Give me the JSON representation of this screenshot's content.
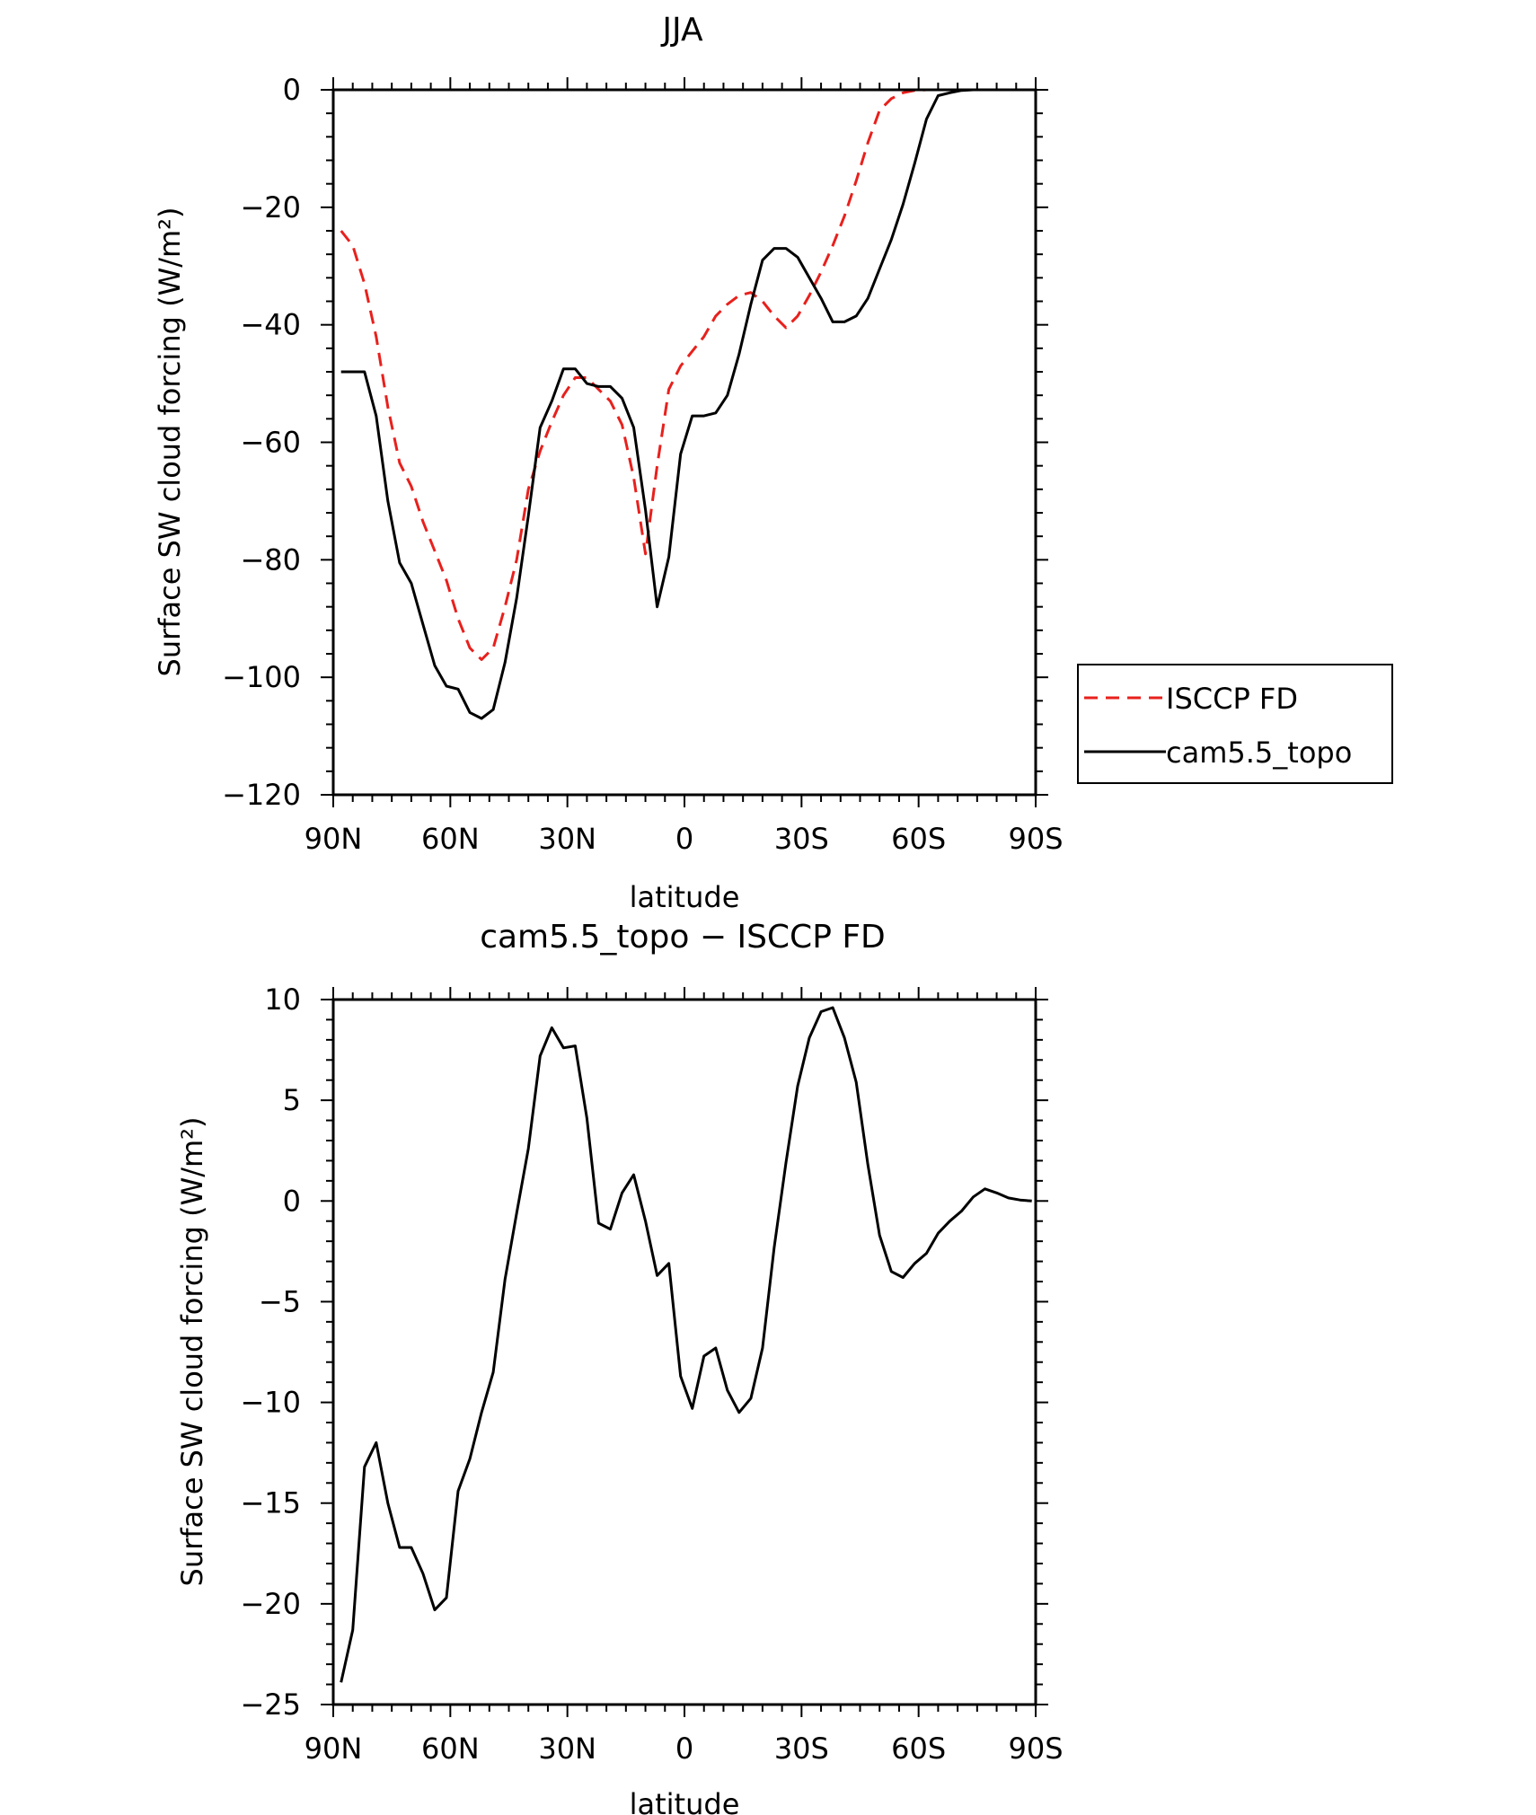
{
  "chart_data": [
    {
      "type": "line",
      "title": "JJA",
      "xlabel": "latitude",
      "ylabel": "Surface SW cloud forcing (W/m²)",
      "xlim": [
        90,
        -90
      ],
      "ylim": [
        -120,
        0
      ],
      "xticks": [
        90,
        60,
        30,
        0,
        -30,
        -60,
        -90
      ],
      "xtick_labels": [
        "90N",
        "60N",
        "30N",
        "0",
        "30S",
        "60S",
        "90S"
      ],
      "yticks": [
        0,
        -20,
        -40,
        -60,
        -80,
        -100,
        -120
      ],
      "ytick_labels": [
        "0",
        "−20",
        "−40",
        "−60",
        "−80",
        "−100",
        "−120"
      ],
      "legend": "right",
      "x": [
        88,
        85,
        82,
        79,
        76,
        73,
        70,
        67,
        64,
        61,
        58,
        55,
        52,
        49,
        46,
        43,
        40,
        37,
        34,
        31,
        28,
        25,
        22,
        19,
        16,
        13,
        10,
        7,
        4,
        1,
        -2,
        -5,
        -8,
        -11,
        -14,
        -17,
        -20,
        -23,
        -26,
        -29,
        -32,
        -35,
        -38,
        -41,
        -44,
        -47,
        -50,
        -53,
        -56,
        -59,
        -62,
        -65,
        -68,
        -71,
        -74,
        -77,
        -80,
        -83,
        -86,
        -89
      ],
      "series": [
        {
          "name": "ISCCP FD",
          "color": "#e8201c",
          "dash": true,
          "values": [
            -24,
            -26.5,
            -33,
            -42,
            -54,
            -63.5,
            -67.5,
            -73.5,
            -78.5,
            -83.5,
            -90,
            -95,
            -97,
            -95,
            -88,
            -80,
            -68,
            -61.5,
            -56.5,
            -52,
            -49,
            -49,
            -51,
            -53,
            -57,
            -66,
            -79,
            -64,
            -51,
            -47,
            -44.5,
            -42,
            -38.5,
            -36.5,
            -35,
            -34.5,
            -36,
            -38.5,
            -40.5,
            -38.5,
            -35,
            -31,
            -26.5,
            -21.5,
            -15.5,
            -9,
            -3.5,
            -1.5,
            -0.5,
            -0.1,
            0,
            0,
            0,
            0,
            0,
            0,
            0,
            0,
            0,
            0
          ]
        },
        {
          "name": "cam5.5_topo",
          "color": "#000000",
          "dash": false,
          "values": [
            -48,
            -48,
            -48,
            -55.5,
            -70,
            -80.5,
            -84,
            -91,
            -98,
            -101.5,
            -102,
            -106,
            -107,
            -105.5,
            -97.5,
            -86.5,
            -72.5,
            -57.5,
            -53,
            -47.5,
            -47.5,
            -50,
            -50.5,
            -50.5,
            -52.5,
            -57.5,
            -71.5,
            -88,
            -79.5,
            -62,
            -55.5,
            -55.5,
            -55,
            -52,
            -45,
            -36.5,
            -29,
            -27,
            -27,
            -28.5,
            -32,
            -35.5,
            -39.5,
            -39.5,
            -38.5,
            -35.5,
            -30.5,
            -25.5,
            -19.5,
            -12.5,
            -5,
            -1,
            -0.5,
            -0.1,
            0,
            0,
            0,
            0,
            0,
            0
          ]
        }
      ]
    },
    {
      "type": "line",
      "title": "cam5.5_topo − ISCCP FD",
      "xlabel": "latitude",
      "ylabel": "Surface SW cloud forcing (W/m²)",
      "xlim": [
        90,
        -90
      ],
      "ylim": [
        -25,
        10
      ],
      "xticks": [
        90,
        60,
        30,
        0,
        -30,
        -60,
        -90
      ],
      "xtick_labels": [
        "90N",
        "60N",
        "30N",
        "0",
        "30S",
        "60S",
        "90S"
      ],
      "yticks": [
        10,
        5,
        0,
        -5,
        -10,
        -15,
        -20,
        -25
      ],
      "ytick_labels": [
        "10",
        "5",
        "0",
        "−5",
        "−10",
        "−15",
        "−20",
        "−25"
      ],
      "x": [
        88,
        85,
        82,
        79,
        76,
        73,
        70,
        67,
        64,
        61,
        58,
        55,
        52,
        49,
        46,
        43,
        40,
        37,
        34,
        31,
        28,
        25,
        22,
        19,
        16,
        13,
        10,
        7,
        4,
        1,
        -2,
        -5,
        -8,
        -11,
        -14,
        -17,
        -20,
        -23,
        -26,
        -29,
        -32,
        -35,
        -38,
        -41,
        -44,
        -47,
        -50,
        -53,
        -56,
        -59,
        -62,
        -65,
        -68,
        -71,
        -74,
        -77,
        -80,
        -83,
        -86,
        -89
      ],
      "series": [
        {
          "color": "#000000",
          "values": [
            -23.9,
            -21.3,
            -13.2,
            -12,
            -15,
            -17.2,
            -17.2,
            -18.5,
            -20.3,
            -19.7,
            -14.4,
            -12.8,
            -10.5,
            -8.5,
            -3.9,
            -0.6,
            2.6,
            7.2,
            8.6,
            7.6,
            7.7,
            4.1,
            -1.1,
            -1.4,
            0.4,
            1.3,
            -1,
            -3.7,
            -3.1,
            -8.7,
            -10.3,
            -7.7,
            -7.3,
            -9.4,
            -10.5,
            -9.8,
            -7.3,
            -2.3,
            1.9,
            5.7,
            8.1,
            9.4,
            9.6,
            8.1,
            5.9,
            1.8,
            -1.7,
            -3.5,
            -3.8,
            -3.1,
            -2.6,
            -1.6,
            -1,
            -0.5,
            0.2,
            0.6,
            0.4,
            0.15,
            0.05,
            0
          ]
        }
      ]
    }
  ]
}
